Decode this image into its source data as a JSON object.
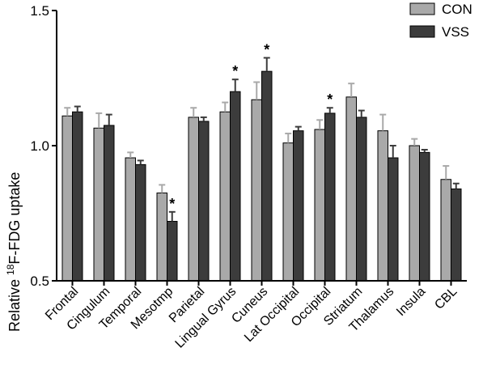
{
  "chart_data": {
    "type": "bar",
    "ylabel_prefix": "Relative ",
    "ylabel_super": "18",
    "ylabel_suffix": "F-FDG uptake",
    "ylim": [
      0.5,
      1.5
    ],
    "yticks": [
      {
        "value": 0.5,
        "label": "0.5"
      },
      {
        "value": 1.0,
        "label": "1.0"
      },
      {
        "value": 1.5,
        "label": "1.5"
      }
    ],
    "legend_position": "top-right",
    "categories": [
      "Frontal",
      "Cingulum",
      "Temporal",
      "Mesotmp",
      "Parietal",
      "Lingual Gyrus",
      "Cuneus",
      "Lat Occipital",
      "Occipital",
      "Striatum",
      "Thalamus",
      "Insula",
      "CBL"
    ],
    "series": [
      {
        "name": "CON",
        "color": "#a9a9a9",
        "values": [
          1.11,
          1.065,
          0.955,
          0.825,
          1.105,
          1.125,
          1.17,
          1.01,
          1.06,
          1.18,
          1.055,
          1.0,
          0.875
        ],
        "errors": [
          0.03,
          0.055,
          0.02,
          0.03,
          0.035,
          0.035,
          0.065,
          0.035,
          0.035,
          0.05,
          0.06,
          0.025,
          0.05
        ]
      },
      {
        "name": "VSS",
        "color": "#3c3c3c",
        "values": [
          1.125,
          1.075,
          0.93,
          0.72,
          1.09,
          1.2,
          1.275,
          1.055,
          1.12,
          1.105,
          0.955,
          0.975,
          0.84
        ],
        "errors": [
          0.02,
          0.04,
          0.015,
          0.035,
          0.015,
          0.045,
          0.05,
          0.015,
          0.02,
          0.025,
          0.045,
          0.01,
          0.02
        ]
      }
    ],
    "significance_marker": "*",
    "significant_categories": [
      "Mesotmp",
      "Lingual Gyrus",
      "Cuneus",
      "Occipital"
    ]
  }
}
